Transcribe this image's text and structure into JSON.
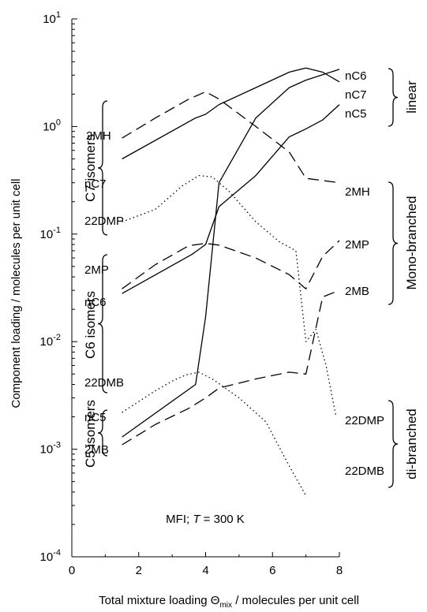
{
  "chart_data": {
    "type": "line",
    "xlabel_prefix": "Total mixture loading Θ",
    "xlabel_sub": "mix",
    "xlabel_suffix": " / molecules per unit cell",
    "ylabel": "Component loading / molecules per unit cell",
    "xlim": [
      0,
      8
    ],
    "ylim": [
      0.0001,
      10
    ],
    "yscale": "log",
    "x_ticks": [
      "0",
      "2",
      "4",
      "6",
      "8"
    ],
    "y_ticks": [
      {
        "value": 10,
        "base": "10",
        "exp": "1"
      },
      {
        "value": 1,
        "label": "10",
        "base": "10",
        "exp": "0",
        "text": "10⁰"
      },
      {
        "value": 0.1,
        "base": "10",
        "exp": "-1"
      },
      {
        "value": 0.01,
        "base": "10",
        "exp": "-2"
      },
      {
        "value": 0.001,
        "base": "10",
        "exp": "-3"
      },
      {
        "value": 0.0001,
        "base": "10",
        "exp": "-4"
      }
    ],
    "annotation": "MFI; T = 300 K",
    "annotation_parts": [
      "MFI; ",
      "T",
      " = 300 K"
    ],
    "series": [
      {
        "name": "nC7",
        "style": "solid",
        "x": [
          1.5,
          3.7,
          4.0,
          4.4,
          5.5,
          6.5,
          7.0,
          7.5,
          8.0
        ],
        "y": [
          0.5,
          1.2,
          1.3,
          1.6,
          2.3,
          3.2,
          3.5,
          3.2,
          2.6
        ]
      },
      {
        "name": "2MH",
        "style": "dashed",
        "x": [
          1.5,
          2.5,
          3.5,
          4.0,
          4.4,
          5.5,
          6.5,
          7.0,
          8.0
        ],
        "y": [
          0.78,
          1.2,
          1.8,
          2.1,
          1.8,
          1.0,
          0.58,
          0.33,
          0.3
        ]
      },
      {
        "name": "22DMP",
        "style": "dotted",
        "x": [
          1.5,
          2.5,
          3.3,
          3.8,
          4.2,
          4.7,
          5.5,
          6.2,
          6.7,
          7.0,
          7.3,
          7.6,
          7.9
        ],
        "y": [
          0.13,
          0.17,
          0.28,
          0.35,
          0.34,
          0.25,
          0.13,
          0.085,
          0.07,
          0.01,
          0.013,
          0.006,
          0.002
        ]
      },
      {
        "name": "nC6",
        "style": "solid",
        "x": [
          1.5,
          3.6,
          4.0,
          4.4,
          5.5,
          6.5,
          7.0,
          7.5,
          8.0
        ],
        "y": [
          0.028,
          0.065,
          0.08,
          0.18,
          0.35,
          0.8,
          0.95,
          1.15,
          1.6
        ]
      },
      {
        "name": "2MP",
        "style": "dashed",
        "x": [
          1.5,
          2.5,
          3.5,
          4.0,
          4.4,
          5.5,
          6.5,
          7.0,
          7.5,
          8.0
        ],
        "y": [
          0.031,
          0.052,
          0.078,
          0.082,
          0.079,
          0.06,
          0.042,
          0.031,
          0.062,
          0.087
        ]
      },
      {
        "name": "22DMB",
        "style": "dotted",
        "x": [
          1.5,
          2.5,
          3.0,
          3.4,
          3.8,
          4.2,
          5.0,
          5.8,
          6.5,
          7.0
        ],
        "y": [
          0.0022,
          0.0035,
          0.0043,
          0.0049,
          0.0052,
          0.0045,
          0.003,
          0.0018,
          0.0007,
          0.00037
        ]
      },
      {
        "name": "nC5",
        "style": "solid",
        "x": [
          1.5,
          3.7,
          4.0,
          4.4,
          5.5,
          6.5,
          7.0,
          8.0
        ],
        "y": [
          0.0013,
          0.004,
          0.017,
          0.3,
          1.2,
          2.3,
          2.7,
          3.4
        ]
      },
      {
        "name": "2MB",
        "style": "dashed",
        "x": [
          1.5,
          2.5,
          3.5,
          4.0,
          4.4,
          5.5,
          6.5,
          7.0,
          7.5,
          8.0
        ],
        "y": [
          0.0011,
          0.0017,
          0.0024,
          0.003,
          0.0037,
          0.0045,
          0.0052,
          0.005,
          0.026,
          0.03
        ]
      }
    ],
    "left_groups": [
      {
        "label": "C7 isomers",
        "members": [
          "2MH",
          "nC7",
          "22DMP"
        ]
      },
      {
        "label": "C6 isomers",
        "members": [
          "2MP",
          "nC6",
          "22DMB"
        ]
      },
      {
        "label": "C5 isomers",
        "members": [
          "nC5",
          "2MB"
        ]
      }
    ],
    "right_labels": [
      "nC6",
      "nC7",
      "nC5",
      "2MH",
      "2MP",
      "2MB",
      "22DMP",
      "22DMB"
    ],
    "right_groups": [
      {
        "label": "linear",
        "members": [
          "nC6",
          "nC7",
          "nC5"
        ]
      },
      {
        "label": "Mono-branched",
        "members": [
          "2MH",
          "2MP",
          "2MB"
        ]
      },
      {
        "label": "di-branched",
        "members": [
          "22DMP",
          "22DMB"
        ]
      }
    ]
  }
}
